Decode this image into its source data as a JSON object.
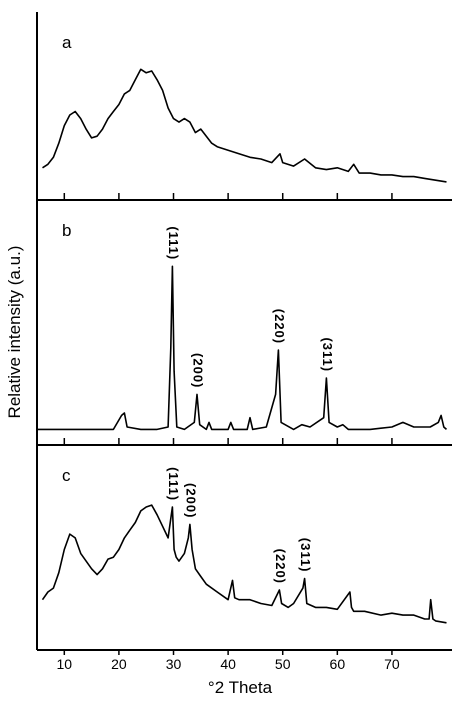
{
  "chart_data": [
    {
      "type": "line",
      "label": "a",
      "color": "#000000",
      "x": [
        6,
        7,
        8,
        9,
        10,
        11,
        12,
        13,
        14,
        15,
        16,
        17,
        18,
        19,
        20,
        21,
        22,
        23,
        24,
        25,
        26,
        27,
        28,
        29,
        30,
        31,
        32,
        33,
        34,
        35,
        36,
        37,
        38,
        40,
        42,
        44,
        46,
        48,
        49.5,
        50,
        52,
        54,
        56,
        58,
        60,
        62,
        63,
        64,
        66,
        68,
        70,
        72,
        74,
        76,
        78,
        80
      ],
      "values": [
        16,
        18,
        22,
        30,
        40,
        46,
        48,
        44,
        38,
        33,
        34,
        38,
        44,
        48,
        52,
        58,
        60,
        66,
        72,
        70,
        71,
        66,
        60,
        50,
        44,
        42,
        44,
        42,
        36,
        38,
        34,
        30,
        28,
        26,
        24,
        22,
        21,
        19,
        24,
        19,
        17,
        21,
        16,
        15,
        16,
        14,
        18,
        13,
        13,
        12,
        12,
        11,
        11,
        10,
        9,
        8
      ],
      "xlim": [
        5,
        81
      ],
      "ylim": [
        0,
        100
      ],
      "xticks": [
        10,
        20,
        30,
        40,
        50,
        60,
        70
      ],
      "tick_labels": false
    },
    {
      "type": "line",
      "label": "b",
      "color": "#000000",
      "y_label": "Relative intensity (a.u.)",
      "x": [
        5,
        8,
        12,
        16,
        19,
        20.5,
        21,
        21.5,
        24,
        27,
        29,
        29.5,
        29.8,
        30.1,
        30.6,
        32,
        33.8,
        34.3,
        34.8,
        36,
        36.5,
        37,
        40,
        40.5,
        41,
        43.5,
        44,
        44.5,
        47,
        48.7,
        49.2,
        49.7,
        52,
        53.5,
        55,
        57.5,
        58,
        58.5,
        60,
        61,
        62,
        66,
        70,
        72,
        74,
        77,
        78.5,
        79,
        79.5,
        80
      ],
      "values": [
        5,
        5,
        5,
        5,
        5,
        11,
        12,
        6,
        5,
        5,
        6,
        40,
        75,
        30,
        6,
        5,
        8,
        20,
        7,
        5,
        8,
        5,
        5,
        8,
        5,
        5,
        10,
        5,
        6,
        20,
        39,
        8,
        5,
        7,
        6,
        10,
        27,
        8,
        6,
        7,
        5,
        5,
        6,
        8,
        6,
        6,
        8,
        11,
        6,
        5
      ],
      "annotations": [
        {
          "text": "(111)",
          "x": 29.8
        },
        {
          "text": "(200)",
          "x": 34.3
        },
        {
          "text": "(220)",
          "x": 49.2
        },
        {
          "text": "(311)",
          "x": 58
        }
      ],
      "xlim": [
        5,
        81
      ],
      "ylim": [
        0,
        100
      ],
      "xticks": [
        10,
        20,
        30,
        40,
        50,
        60,
        70
      ],
      "tick_labels": false
    },
    {
      "type": "line",
      "label": "c",
      "color": "#000000",
      "x_label": "°2 Theta",
      "x": [
        6,
        7,
        8,
        9,
        10,
        11,
        12,
        13,
        14,
        15,
        16,
        17,
        18,
        19,
        20,
        21,
        22,
        23,
        24,
        25,
        26,
        27,
        28,
        29,
        29.8,
        30.1,
        30.5,
        31,
        32,
        32.7,
        33,
        33.4,
        34,
        35,
        36,
        38,
        40,
        40.8,
        41.2,
        42,
        44,
        46,
        48,
        49.4,
        49.8,
        51,
        52,
        53.7,
        54,
        54.4,
        56,
        58,
        60,
        62.3,
        62.6,
        63,
        65,
        68,
        70,
        72,
        74,
        76,
        76.8,
        77.1,
        77.5,
        78,
        80
      ],
      "values": [
        24,
        28,
        30,
        38,
        50,
        58,
        56,
        48,
        44,
        40,
        37,
        40,
        45,
        46,
        50,
        56,
        60,
        64,
        70,
        72,
        73,
        68,
        62,
        56,
        72,
        50,
        46,
        44,
        48,
        56,
        63,
        50,
        40,
        36,
        32,
        28,
        24,
        34,
        25,
        24,
        24,
        22,
        21,
        29,
        22,
        20,
        22,
        30,
        35,
        22,
        20,
        20,
        19,
        28,
        20,
        18,
        18,
        16,
        17,
        16,
        16,
        14,
        14,
        24,
        14,
        13,
        12
      ],
      "annotations": [
        {
          "text": "(111)",
          "x": 29.8
        },
        {
          "text": "(200)",
          "x": 33
        },
        {
          "text": "(220)",
          "x": 49.4
        },
        {
          "text": "(311)",
          "x": 54
        }
      ],
      "xlim": [
        5,
        81
      ],
      "ylim": [
        0,
        100
      ],
      "xticks": [
        10,
        20,
        30,
        40,
        50,
        60,
        70
      ],
      "tick_labels": true
    }
  ]
}
